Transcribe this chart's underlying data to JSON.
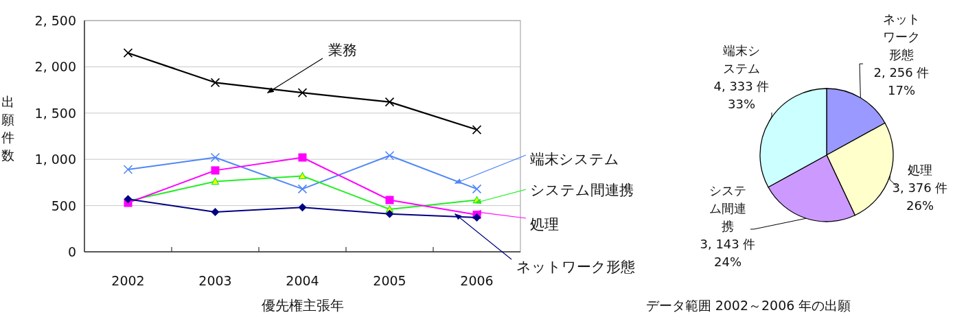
{
  "chart_data": [
    {
      "type": "line",
      "xlabel": "優先権主張年",
      "ylabel": "出願件数",
      "categories": [
        "2002",
        "2003",
        "2004",
        "2005",
        "2006"
      ],
      "series": [
        {
          "name": "業務",
          "color": "#000000",
          "marker": "cross",
          "values": [
            2150,
            1830,
            1720,
            1620,
            1320
          ]
        },
        {
          "name": "端末システム",
          "color": "#4f86f7",
          "marker": "cross",
          "values": [
            890,
            1020,
            680,
            1040,
            680
          ]
        },
        {
          "name": "システム間連携",
          "color": "#22ee22",
          "marker": "triangle",
          "values": [
            550,
            760,
            820,
            460,
            560
          ]
        },
        {
          "name": "処理",
          "color": "#ff00ff",
          "marker": "square",
          "values": [
            530,
            880,
            1020,
            560,
            400
          ]
        },
        {
          "name": "ネットワーク形態",
          "color": "#000080",
          "marker": "diamond",
          "values": [
            570,
            430,
            480,
            410,
            370
          ]
        }
      ],
      "ylim": [
        0,
        2500
      ],
      "yticks": [
        0,
        500,
        {
          "value": 1000,
          "label": "1, 000"
        },
        {
          "value": 1500,
          "label": "1, 500"
        },
        {
          "value": 2000,
          "label": "2, 000"
        },
        {
          "value": 2500,
          "label": "2, 500"
        }
      ],
      "grid": "y",
      "legend": "right"
    },
    {
      "type": "pie",
      "categories": [
        "ネットワーク形態",
        "処理",
        "システム間連携",
        "端末システム"
      ],
      "values": [
        17,
        26,
        24,
        33
      ],
      "colors": [
        "#9999ff",
        "#ffffcc",
        "#cc99ff",
        "#ccffff"
      ],
      "value_labels": [
        "2, 256 件\n17%",
        "3, 376 件\n26%",
        "3, 143 件\n24%",
        "4, 333 件\n33%"
      ],
      "annotations": [
        "データ範囲 2002～2006 年の出願"
      ]
    }
  ]
}
